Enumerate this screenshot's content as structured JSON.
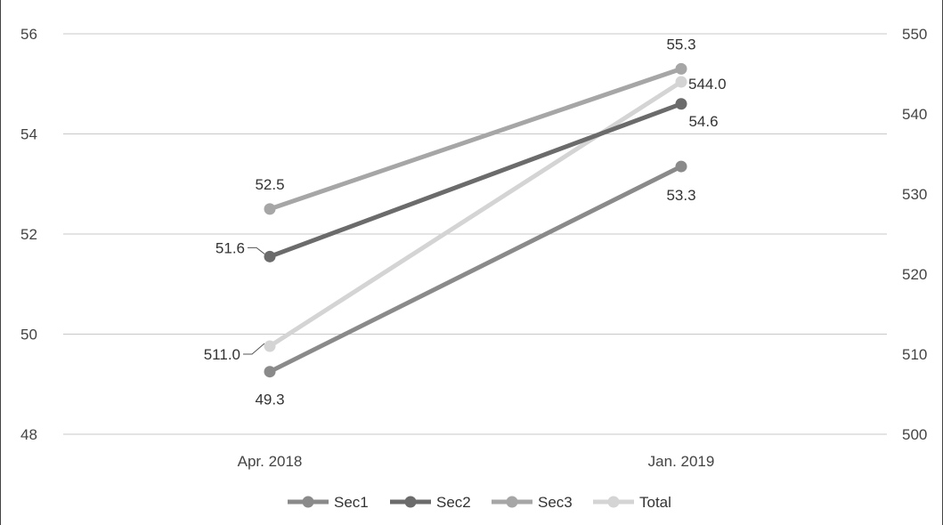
{
  "chart_data": {
    "type": "line",
    "categories": [
      "Apr. 2018",
      "Jan. 2019"
    ],
    "y_left": {
      "min": 48,
      "max": 56,
      "ticks": [
        48,
        50,
        52,
        54,
        56
      ]
    },
    "y_right": {
      "min": 500,
      "max": 550,
      "ticks": [
        500,
        510,
        520,
        530,
        540,
        550
      ]
    },
    "grid": true,
    "legend_position": "bottom",
    "series": [
      {
        "name": "Sec1",
        "axis": "left",
        "values": [
          49.25,
          53.35
        ],
        "labels": [
          "49.3",
          "53.3"
        ],
        "color": "#8a8a8a"
      },
      {
        "name": "Sec2",
        "axis": "left",
        "values": [
          51.55,
          54.6
        ],
        "labels": [
          "51.6",
          "54.6"
        ],
        "color": "#6b6b6b"
      },
      {
        "name": "Sec3",
        "axis": "left",
        "values": [
          52.5,
          55.3
        ],
        "labels": [
          "52.5",
          "55.3"
        ],
        "color": "#a6a6a6"
      },
      {
        "name": "Total",
        "axis": "right",
        "values": [
          511.0,
          544.0
        ],
        "labels": [
          "511.0",
          "544.0"
        ],
        "color": "#d4d4d4"
      }
    ]
  }
}
